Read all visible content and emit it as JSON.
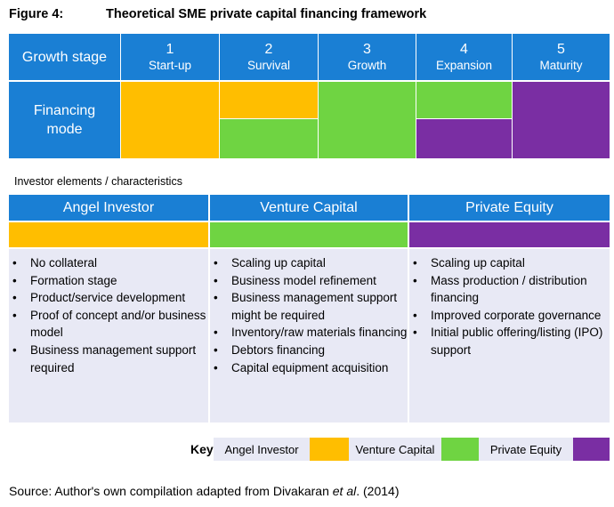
{
  "figure": {
    "label": "Figure 4:",
    "title": "Theoretical SME private capital financing framework"
  },
  "framework": {
    "growth_stage_label": "Growth stage",
    "financing_mode_label_line1": "Financing",
    "financing_mode_label_line2": "mode",
    "stages": [
      {
        "number": "1",
        "name": "Start-up"
      },
      {
        "number": "2",
        "name": "Survival"
      },
      {
        "number": "3",
        "name": "Growth"
      },
      {
        "number": "4",
        "name": "Expansion"
      },
      {
        "number": "5",
        "name": "Maturity"
      }
    ],
    "financing_modes": [
      [
        "Angel Investor"
      ],
      [
        "Angel Investor",
        "Venture Capital"
      ],
      [
        "Venture Capital"
      ],
      [
        "Venture Capital",
        "Private Equity"
      ],
      [
        "Private Equity"
      ]
    ]
  },
  "investors": {
    "section_label": "Investor elements / characteristics",
    "columns": [
      {
        "name": "Angel Investor",
        "items": [
          "No collateral",
          "Formation stage",
          "Product/service development",
          "Proof of concept and/or business model",
          "Business management support required"
        ]
      },
      {
        "name": "Venture Capital",
        "items": [
          "Scaling up capital",
          "Business model refinement",
          "Business management support might be required",
          "Inventory/raw materials financing",
          "Debtors financing",
          "Capital equipment acquisition"
        ]
      },
      {
        "name": "Private Equity",
        "items": [
          "Scaling up capital",
          "Mass production / distribution financing",
          "Improved corporate governance",
          "Initial public offering/listing (IPO) support"
        ]
      }
    ]
  },
  "key": {
    "title": "Key",
    "entries": [
      "Angel Investor",
      "Venture Capital",
      "Private Equity"
    ]
  },
  "colors": {
    "header_blue": "#1a7fd4",
    "angel_investor": "#ffbe00",
    "venture_capital": "#6fd442",
    "private_equity": "#7a2ea3",
    "panel_bg": "#e8e9f5"
  },
  "source": {
    "prefix": "Source: Author's own compilation adapted from Divakaran ",
    "italic": "et al",
    "suffix": ". (2014)"
  }
}
